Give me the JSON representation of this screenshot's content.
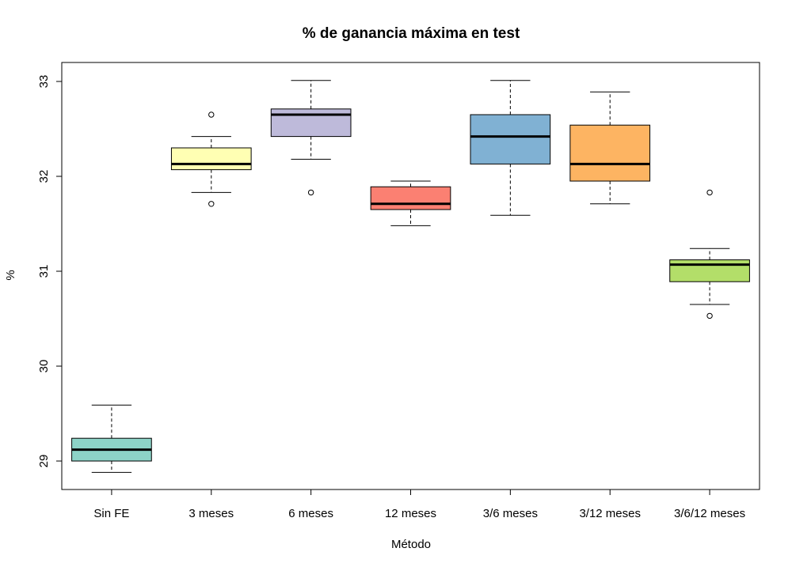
{
  "chart_data": {
    "type": "boxplot",
    "title": "% de ganancia máxima en test",
    "xlabel": "Método",
    "ylabel": "%",
    "ylim": [
      28.7,
      33.2
    ],
    "yticks": [
      "29",
      "30",
      "31",
      "32",
      "33"
    ],
    "grid": false,
    "categories": [
      "Sin FE",
      "3 meses",
      "6 meses",
      "12 meses",
      "3/6 meses",
      "3/12 meses",
      "3/6/12 meses"
    ],
    "boxes": [
      {
        "category": "Sin FE",
        "whisker_low": 28.88,
        "q1": 29.0,
        "median": 29.12,
        "q3": 29.24,
        "whisker_high": 29.59,
        "outliers": [],
        "color": "#8DD3C7"
      },
      {
        "category": "3 meses",
        "whisker_low": 31.83,
        "q1": 32.07,
        "median": 32.13,
        "q3": 32.3,
        "whisker_high": 32.42,
        "outliers": [
          31.71,
          32.65
        ],
        "color": "#FFFFB3"
      },
      {
        "category": "6 meses",
        "whisker_low": 32.18,
        "q1": 32.42,
        "median": 32.65,
        "q3": 32.71,
        "whisker_high": 33.01,
        "outliers": [
          31.83
        ],
        "color": "#BEBADA"
      },
      {
        "category": "12 meses",
        "whisker_low": 31.48,
        "q1": 31.65,
        "median": 31.71,
        "q3": 31.89,
        "whisker_high": 31.95,
        "outliers": [],
        "color": "#FB8072"
      },
      {
        "category": "3/6 meses",
        "whisker_low": 31.59,
        "q1": 32.13,
        "median": 32.42,
        "q3": 32.65,
        "whisker_high": 33.01,
        "outliers": [],
        "color": "#80B1D3"
      },
      {
        "category": "3/12 meses",
        "whisker_low": 31.71,
        "q1": 31.95,
        "median": 32.13,
        "q3": 32.54,
        "whisker_high": 32.89,
        "outliers": [],
        "color": "#FDB462"
      },
      {
        "category": "3/6/12 meses",
        "whisker_low": 30.65,
        "q1": 30.89,
        "median": 31.07,
        "q3": 31.12,
        "whisker_high": 31.24,
        "outliers": [
          31.83,
          30.53
        ],
        "color": "#B3DE69"
      }
    ]
  }
}
